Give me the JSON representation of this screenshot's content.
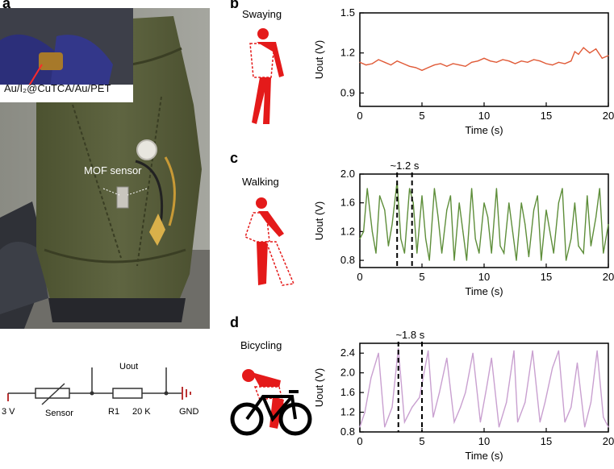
{
  "panel_a": {
    "letter": "a",
    "inset_label": "Au/I₂@CuTCA/Au/PET",
    "sensor_label": "MOF sensor",
    "circuit": {
      "voltage_label": "3 V",
      "sensor_label": "Sensor",
      "resistor_name": "R1",
      "resistor_value": "20 K",
      "ground_label": "GND",
      "output_label": "Uout"
    }
  },
  "chart_data": [
    {
      "type": "line",
      "panel": "b",
      "activity": "Swaying",
      "xlabel": "Time (s)",
      "ylabel": "Uout (V)",
      "xlim": [
        0,
        20
      ],
      "ylim": [
        0.8,
        1.5
      ],
      "xticks": [
        0,
        5,
        10,
        15,
        20
      ],
      "yticks": [
        0.9,
        1.2,
        1.5
      ],
      "color": "#e05a37",
      "series": [
        {
          "name": "Swaying",
          "x": [
            0,
            0.5,
            1,
            1.5,
            2,
            2.5,
            3,
            3.5,
            4,
            4.5,
            5,
            5.5,
            6,
            6.5,
            7,
            7.5,
            8,
            8.5,
            9,
            9.5,
            10,
            10.5,
            11,
            11.5,
            12,
            12.5,
            13,
            13.5,
            14,
            14.5,
            15,
            15.5,
            16,
            16.5,
            17,
            17.3,
            17.6,
            18,
            18.5,
            19,
            19.5,
            20
          ],
          "y": [
            1.13,
            1.11,
            1.12,
            1.15,
            1.13,
            1.11,
            1.14,
            1.12,
            1.1,
            1.09,
            1.07,
            1.09,
            1.11,
            1.12,
            1.1,
            1.12,
            1.11,
            1.1,
            1.13,
            1.14,
            1.16,
            1.14,
            1.13,
            1.15,
            1.14,
            1.12,
            1.14,
            1.13,
            1.15,
            1.14,
            1.12,
            1.11,
            1.13,
            1.12,
            1.14,
            1.21,
            1.19,
            1.24,
            1.2,
            1.23,
            1.16,
            1.18
          ]
        }
      ]
    },
    {
      "type": "line",
      "panel": "c",
      "activity": "Walking",
      "xlabel": "Time (s)",
      "ylabel": "Uout (V)",
      "xlim": [
        0,
        20
      ],
      "ylim": [
        0.7,
        2.0
      ],
      "xticks": [
        0,
        5,
        10,
        15,
        20
      ],
      "yticks": [
        0.8,
        1.2,
        1.6,
        2.0
      ],
      "color": "#5e8e3a",
      "period_annotation": "~1.2 s",
      "marker_x": [
        3.0,
        4.2
      ],
      "series": [
        {
          "name": "Walking",
          "x": [
            0,
            0.3,
            0.6,
            1,
            1.3,
            1.6,
            2,
            2.3,
            2.6,
            3,
            3.3,
            3.6,
            4,
            4.3,
            4.6,
            5,
            5.3,
            5.6,
            6,
            6.3,
            6.6,
            7,
            7.3,
            7.6,
            8,
            8.3,
            8.6,
            9,
            9.3,
            9.6,
            10,
            10.3,
            10.6,
            11,
            11.3,
            11.6,
            12,
            12.3,
            12.6,
            13,
            13.3,
            13.6,
            14,
            14.3,
            14.6,
            15,
            15.3,
            15.6,
            16,
            16.3,
            16.6,
            17,
            17.3,
            17.6,
            18,
            18.3,
            18.6,
            19,
            19.3,
            19.6,
            20
          ],
          "y": [
            1.1,
            1.2,
            1.8,
            1.2,
            0.9,
            1.7,
            1.5,
            1.0,
            1.3,
            1.9,
            1.1,
            0.9,
            1.8,
            1.6,
            0.9,
            1.7,
            1.1,
            0.8,
            1.8,
            1.4,
            0.9,
            1.5,
            1.7,
            0.8,
            1.6,
            1.2,
            0.8,
            1.8,
            1.1,
            0.9,
            1.6,
            1.4,
            0.9,
            1.8,
            1.0,
            0.9,
            1.6,
            1.2,
            0.8,
            1.6,
            1.3,
            0.85,
            1.5,
            1.7,
            0.8,
            1.5,
            1.2,
            0.9,
            1.6,
            1.8,
            0.8,
            1.1,
            1.6,
            1.0,
            0.9,
            1.7,
            1.0,
            1.4,
            1.8,
            0.9,
            1.3
          ]
        }
      ]
    },
    {
      "type": "line",
      "panel": "d",
      "activity": "Bicycling",
      "xlabel": "Time (s)",
      "ylabel": "Uout (V)",
      "xlim": [
        0,
        20
      ],
      "ylim": [
        0.8,
        2.6
      ],
      "xticks": [
        0,
        5,
        10,
        15,
        20
      ],
      "yticks": [
        0.8,
        1.2,
        1.6,
        2.0,
        2.4
      ],
      "color": "#c9a0d0",
      "period_annotation": "~1.8 s",
      "marker_x": [
        3.1,
        5.0
      ],
      "series": [
        {
          "name": "Bicycling",
          "x": [
            0,
            0.4,
            0.9,
            1.5,
            2.0,
            2.6,
            3.1,
            3.6,
            4.2,
            4.8,
            5.5,
            5.9,
            6.4,
            7.0,
            7.6,
            8.1,
            8.5,
            9.1,
            9.7,
            10.2,
            10.6,
            11.2,
            11.8,
            12.4,
            12.7,
            13.3,
            13.9,
            14.5,
            14.9,
            15.5,
            16.0,
            16.5,
            17.0,
            17.5,
            18.1,
            18.6,
            19.1,
            19.6,
            20
          ],
          "y": [
            0.9,
            1.2,
            1.9,
            2.4,
            0.9,
            1.3,
            2.5,
            1.0,
            1.3,
            1.5,
            2.45,
            1.1,
            1.6,
            2.3,
            1.0,
            1.3,
            1.6,
            2.4,
            1.0,
            1.7,
            2.3,
            0.9,
            1.4,
            2.45,
            1.0,
            1.4,
            2.45,
            1.0,
            1.4,
            2.1,
            2.45,
            1.0,
            1.3,
            2.2,
            0.9,
            1.4,
            2.45,
            1.1,
            0.9
          ]
        }
      ]
    }
  ]
}
